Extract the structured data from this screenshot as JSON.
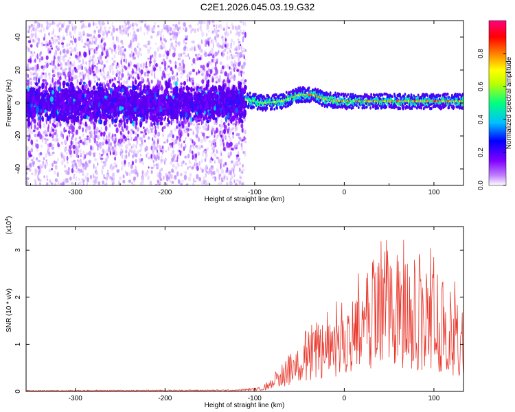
{
  "title": "C2E1.2026.045.03.19.G32",
  "chart_data": [
    {
      "type": "heatmap",
      "title": "C2E1.2026.045.03.19.G32",
      "xlabel": "Height of straight line (km)",
      "ylabel": "Frequency (Hz)",
      "xlim": [
        -355,
        133
      ],
      "ylim": [
        -50,
        50
      ],
      "xticks": [
        -300,
        -200,
        -100,
        0,
        100
      ],
      "yticks": [
        -40,
        -20,
        0,
        20,
        40
      ],
      "colorbar": {
        "label": "Normalized spectral amplitude",
        "range": [
          0,
          1
        ],
        "ticks": [
          "0.0",
          "0.2",
          "0.4",
          "0.6",
          "0.8"
        ],
        "colors": [
          "#ffffff",
          "#8000ff",
          "#0000ff",
          "#00c0ff",
          "#00ff80",
          "#ffff00",
          "#ff8000",
          "#ff0000",
          "#ff00a0"
        ]
      },
      "noise_region_end_km": -110,
      "signal_center_freq_hz": [
        {
          "x": -110,
          "f": 2
        },
        {
          "x": -90,
          "f": 0
        },
        {
          "x": -70,
          "f": 1
        },
        {
          "x": -50,
          "f": 5
        },
        {
          "x": -35,
          "f": 5
        },
        {
          "x": -20,
          "f": 2
        },
        {
          "x": 0,
          "f": 1
        },
        {
          "x": 50,
          "f": 1
        },
        {
          "x": 100,
          "f": 1
        },
        {
          "x": 130,
          "f": 1
        }
      ]
    },
    {
      "type": "line",
      "xlabel": "Height of straight line (km)",
      "ylabel": "SNR (10 * v/v)",
      "yscale_label": "(x10",
      "yscale_exp": "4",
      "xlim": [
        -355,
        133
      ],
      "ylim": [
        0,
        3.5
      ],
      "xticks": [
        -300,
        -200,
        -100,
        0,
        100
      ],
      "yticks": [
        0,
        1,
        2,
        3
      ],
      "series": [
        {
          "name": "SNR",
          "color": "#e8392e",
          "envelope": [
            {
              "x": -355,
              "y": 0.02
            },
            {
              "x": -120,
              "y": 0.03
            },
            {
              "x": -90,
              "y": 0.08
            },
            {
              "x": -70,
              "y": 0.35
            },
            {
              "x": -50,
              "y": 0.75
            },
            {
              "x": -30,
              "y": 0.95
            },
            {
              "x": -10,
              "y": 1.2
            },
            {
              "x": 10,
              "y": 1.5
            },
            {
              "x": 30,
              "y": 1.75
            },
            {
              "x": 50,
              "y": 1.9
            },
            {
              "x": 70,
              "y": 1.85
            },
            {
              "x": 90,
              "y": 1.7
            },
            {
              "x": 110,
              "y": 1.5
            },
            {
              "x": 133,
              "y": 1.1
            }
          ]
        }
      ]
    }
  ]
}
